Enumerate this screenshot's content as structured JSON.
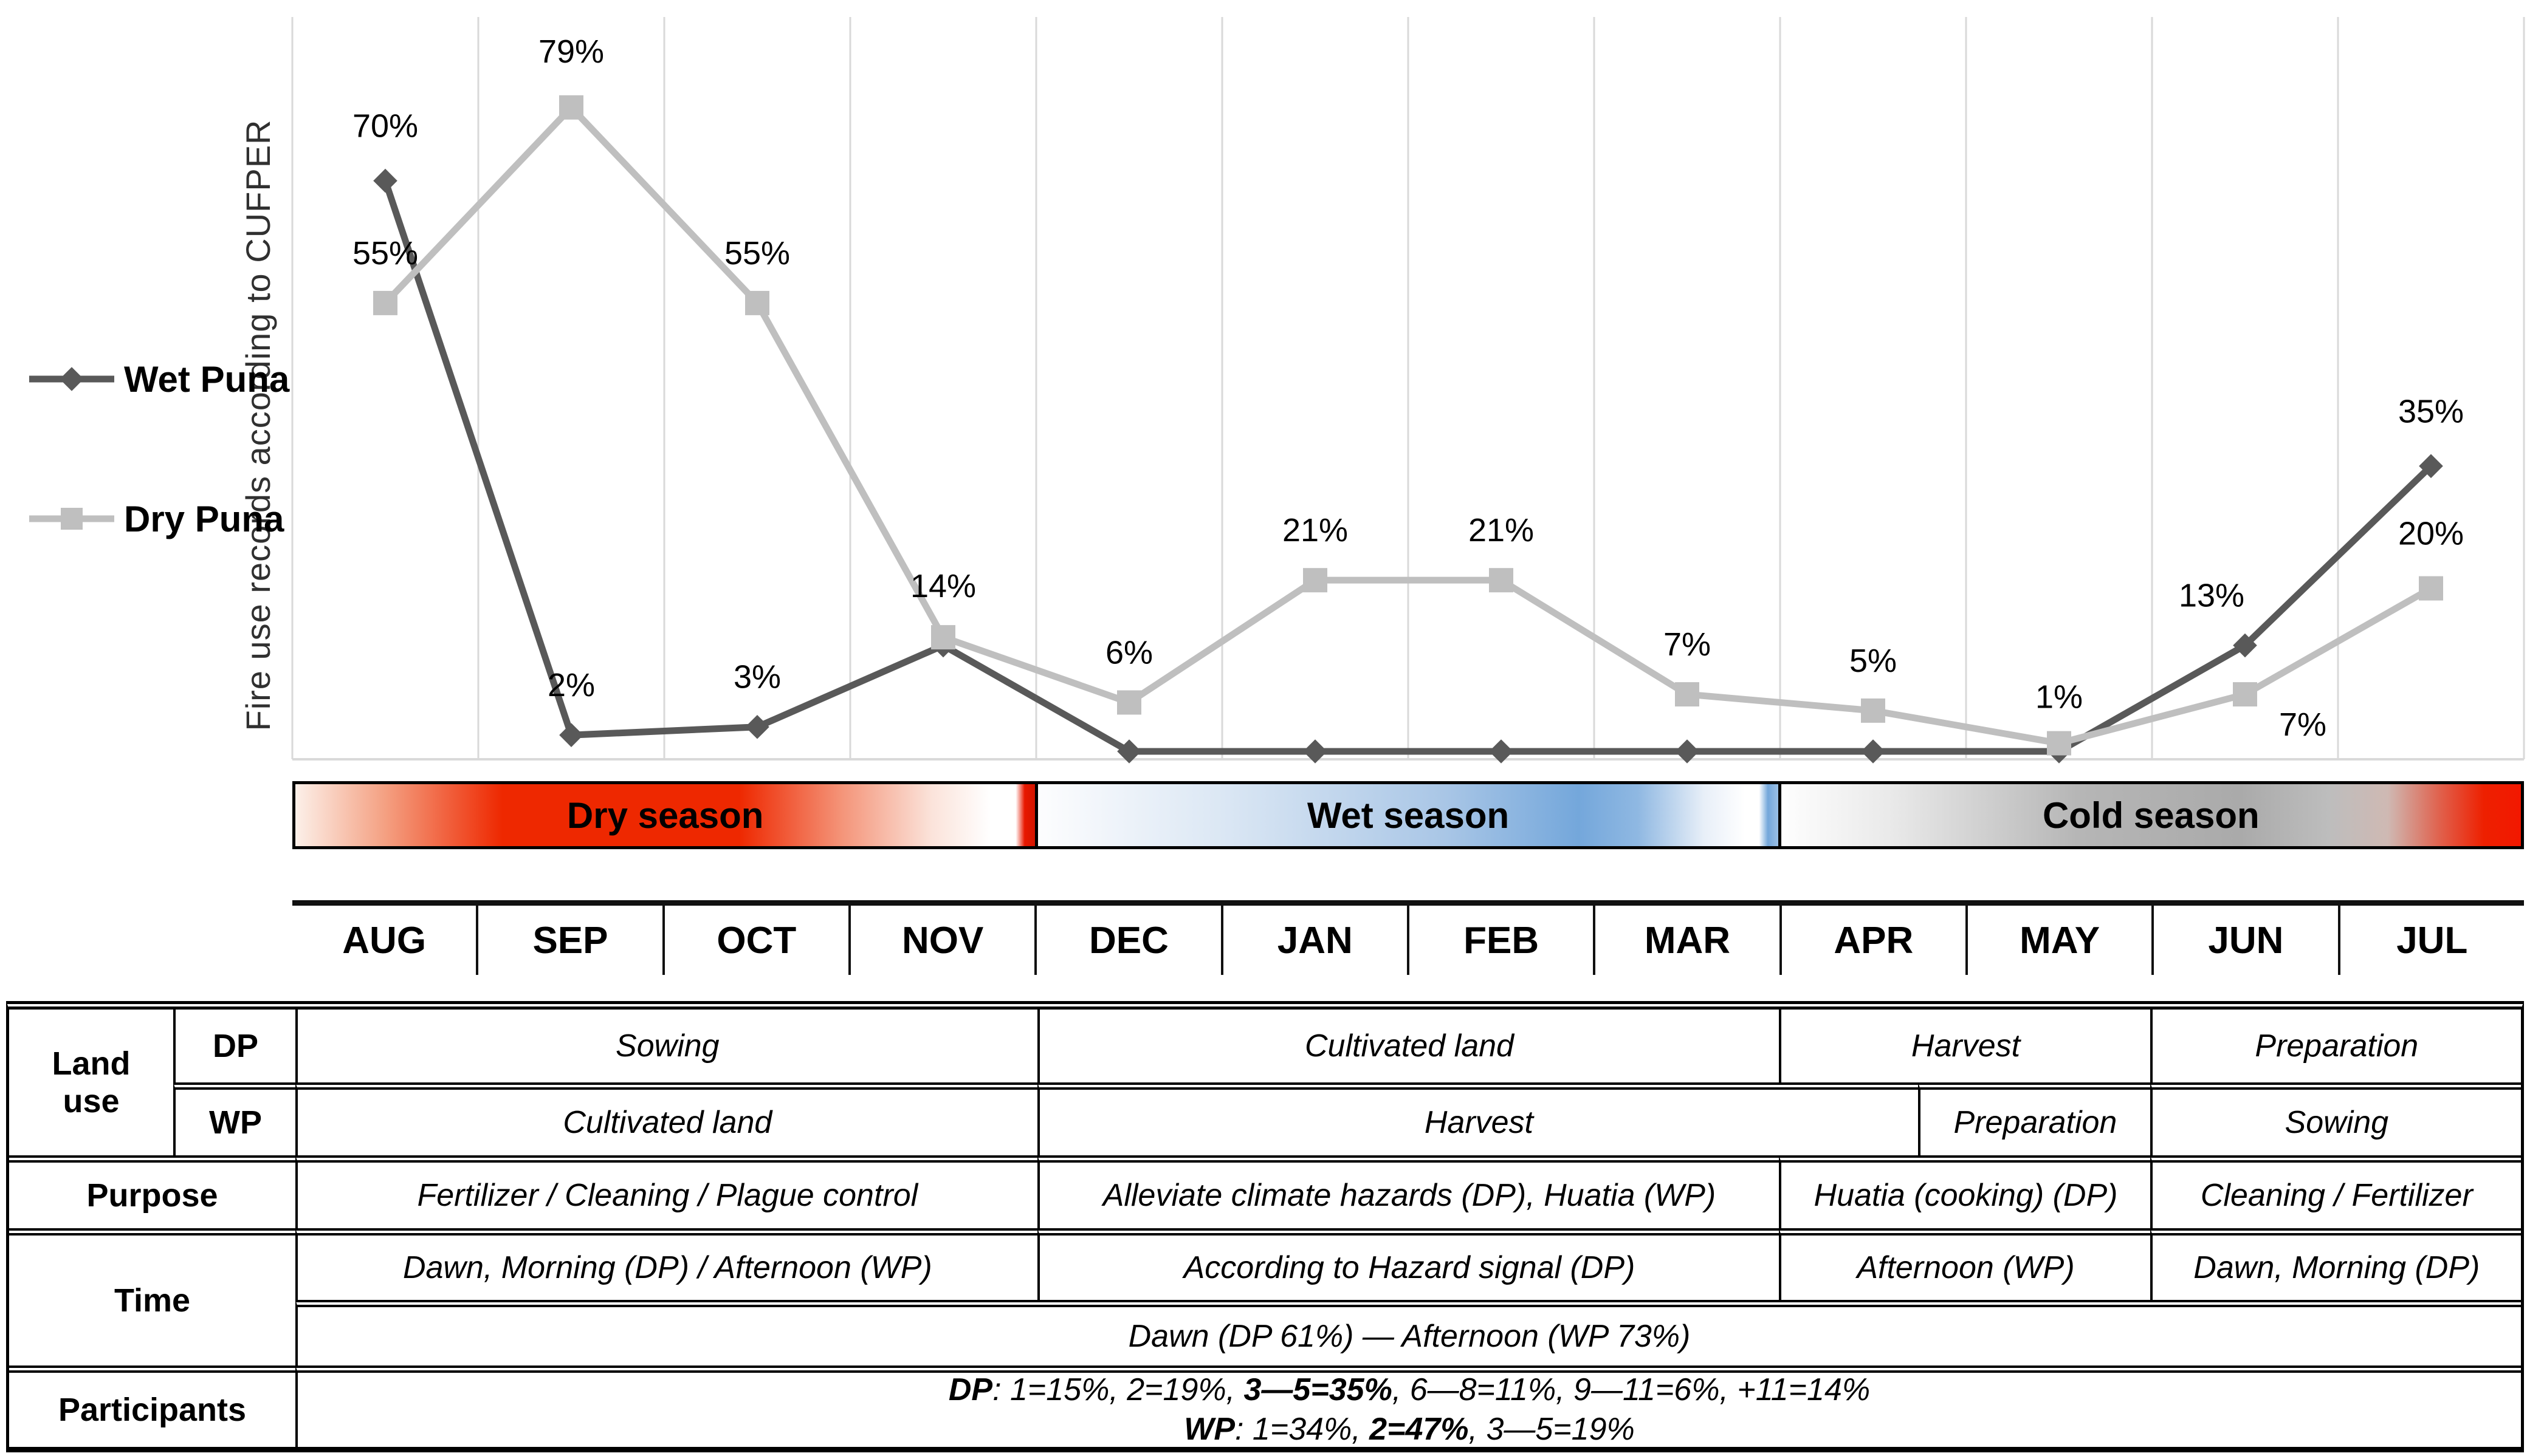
{
  "figure": {
    "legend": [
      {
        "label": "Wet Puna",
        "marker": "diamond-icon",
        "color": "#595959"
      },
      {
        "label": "Dry Puna",
        "marker": "square-icon",
        "color": "#bfbfbf"
      }
    ],
    "seasons": [
      {
        "label": "Dry season",
        "months": "AUG-NOV",
        "color_theme": "#ee2800"
      },
      {
        "label": "Wet season",
        "months": "DEC-MAR",
        "color_theme": "#74a7db"
      },
      {
        "label": "Cold season",
        "months": "APR-JUL",
        "color_theme": "#aaaaaa"
      }
    ],
    "months": [
      "AUG",
      "SEP",
      "OCT",
      "NOV",
      "DEC",
      "JAN",
      "FEB",
      "MAR",
      "APR",
      "MAY",
      "JUN",
      "JUL"
    ]
  },
  "chart_data": {
    "type": "line",
    "title": "",
    "xlabel": "",
    "ylabel": "Fire use records according to CUFPER",
    "ylim": [
      0,
      85
    ],
    "grid": "vertical-monthly",
    "legend_position": "left",
    "x": [
      "AUG",
      "SEP",
      "OCT",
      "NOV",
      "DEC",
      "JAN",
      "FEB",
      "MAR",
      "APR",
      "MAY",
      "JUN",
      "JUL"
    ],
    "series": [
      {
        "name": "Wet Puna",
        "color": "#595959",
        "marker": "diamond",
        "values": [
          70,
          2,
          3,
          13,
          0,
          0,
          0,
          0,
          0,
          0,
          13,
          35
        ],
        "point_labels": [
          "70%",
          "2%",
          "3%",
          null,
          null,
          null,
          null,
          null,
          null,
          null,
          "13%",
          "35%"
        ]
      },
      {
        "name": "Dry Puna",
        "color": "#bfbfbf",
        "marker": "square",
        "values": [
          55,
          79,
          55,
          14,
          6,
          21,
          21,
          7,
          5,
          1,
          7,
          20
        ],
        "point_labels": [
          "55%",
          "79%",
          "55%",
          "14%",
          "6%",
          "21%",
          "21%",
          "7%",
          "5%",
          "1%",
          "7%",
          "20%"
        ]
      }
    ]
  },
  "table": {
    "row_headers": {
      "land_use": "Land\nuse",
      "dp": "DP",
      "wp": "WP",
      "purpose": "Purpose",
      "time": "Time",
      "participants": "Participants"
    },
    "dp_row": {
      "c1": "Sowing",
      "c2": "Cultivated land",
      "c3": "Harvest",
      "c4": "Preparation"
    },
    "wp_row": {
      "c1": "Cultivated land",
      "c2": "Harvest",
      "c3": "Preparation",
      "c4": "Sowing"
    },
    "purpose_row": {
      "c1": "Fertilizer / Cleaning / Plague control",
      "c2": "Alleviate climate hazards (DP), Huatia (WP)",
      "c3": "Huatia (cooking) (DP)",
      "c4": "Cleaning / Fertilizer"
    },
    "time_row1": {
      "c1": "Dawn, Morning (DP) / Afternoon (WP)",
      "c2": "According to Hazard signal (DP)",
      "c3": "Afternoon (WP)",
      "c4": "Dawn, Morning (DP)"
    },
    "time_row2": "Dawn (DP 61%) — Afternoon (WP 73%)",
    "participants": {
      "dp_label": "DP",
      "dp_pre": ": 1=15%, 2=19%, ",
      "dp_bold": "3—5=35%",
      "dp_post": ", 6—8=11%, 9—11=6%, +11=14%",
      "wp_label": "WP",
      "wp_pre": ": 1=34%, ",
      "wp_bold": "2=47%",
      "wp_post": ", 3—5=19%"
    }
  }
}
